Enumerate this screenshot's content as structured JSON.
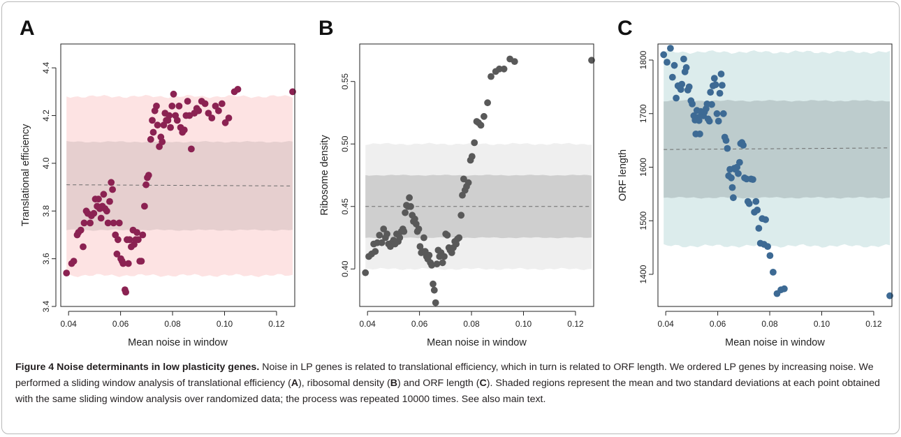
{
  "figure": {
    "caption_title": "Figure 4 Noise determinants in low plasticity genes.",
    "caption_parts": [
      " Noise in LP genes is related to translational efficiency, which in turn is related to ORF length. We ordered LP genes by increasing noise. We performed a sliding window analysis of translational efficiency (",
      "A",
      "), ribosomal density (",
      "B",
      ") and ORF length (",
      "C",
      "). Shaded regions represent the mean and two standard deviations at each point obtained with the same sliding window analysis over randomized data; the process was repeated 10000 times. See also main text."
    ]
  },
  "chart_data": [
    {
      "panel": "A",
      "type": "scatter",
      "xlabel": "Mean noise in window",
      "ylabel": "Translational efficiency",
      "xlim": [
        0.037,
        0.127
      ],
      "ylim": [
        3.4,
        4.5
      ],
      "xticks": [
        0.04,
        0.06,
        0.08,
        0.1,
        0.12
      ],
      "xtick_labels": [
        "0.04",
        "0.06",
        "0.08",
        "0.10",
        "0.12"
      ],
      "yticks": [
        3.4,
        3.6,
        3.8,
        4.0,
        4.2,
        4.4
      ],
      "ytick_labels": [
        "3.4",
        "3.6",
        "3.8",
        "4.0",
        "4.2",
        "4.4"
      ],
      "point_color": "#8b2252",
      "band_outer_color": "#fde3e3",
      "band_inner_color": "#e6cfcf",
      "mean_line": [
        3.91,
        3.905
      ],
      "band_inner": [
        3.72,
        4.09
      ],
      "band_outer": [
        3.53,
        4.28
      ],
      "points": [
        [
          0.0392,
          3.54
        ],
        [
          0.0412,
          3.58
        ],
        [
          0.042,
          3.59
        ],
        [
          0.0433,
          3.7
        ],
        [
          0.0438,
          3.71
        ],
        [
          0.0447,
          3.72
        ],
        [
          0.0456,
          3.65
        ],
        [
          0.046,
          3.75
        ],
        [
          0.0468,
          3.8
        ],
        [
          0.0474,
          3.79
        ],
        [
          0.0483,
          3.75
        ],
        [
          0.0488,
          3.78
        ],
        [
          0.0497,
          3.79
        ],
        [
          0.0503,
          3.85
        ],
        [
          0.051,
          3.82
        ],
        [
          0.0515,
          3.85
        ],
        [
          0.052,
          3.81
        ],
        [
          0.0525,
          3.77
        ],
        [
          0.053,
          3.82
        ],
        [
          0.0535,
          3.87
        ],
        [
          0.054,
          3.81
        ],
        [
          0.0547,
          3.8
        ],
        [
          0.0552,
          3.75
        ],
        [
          0.0558,
          3.84
        ],
        [
          0.0564,
          3.92
        ],
        [
          0.0569,
          3.89
        ],
        [
          0.0573,
          3.75
        ],
        [
          0.058,
          3.7
        ],
        [
          0.0586,
          3.62
        ],
        [
          0.059,
          3.68
        ],
        [
          0.0595,
          3.75
        ],
        [
          0.0601,
          3.6
        ],
        [
          0.0606,
          3.59
        ],
        [
          0.061,
          3.58
        ],
        [
          0.0617,
          3.47
        ],
        [
          0.062,
          3.46
        ],
        [
          0.0625,
          3.68
        ],
        [
          0.063,
          3.58
        ],
        [
          0.0635,
          3.68
        ],
        [
          0.0641,
          3.65
        ],
        [
          0.0648,
          3.72
        ],
        [
          0.0652,
          3.66
        ],
        [
          0.0658,
          3.68
        ],
        [
          0.0663,
          3.71
        ],
        [
          0.0668,
          3.68
        ],
        [
          0.0674,
          3.59
        ],
        [
          0.068,
          3.59
        ],
        [
          0.0685,
          3.7
        ],
        [
          0.0692,
          3.82
        ],
        [
          0.0698,
          3.91
        ],
        [
          0.0703,
          3.94
        ],
        [
          0.0708,
          3.95
        ],
        [
          0.0716,
          4.1
        ],
        [
          0.0722,
          4.18
        ],
        [
          0.0726,
          4.13
        ],
        [
          0.0732,
          4.22
        ],
        [
          0.0738,
          4.24
        ],
        [
          0.0742,
          4.16
        ],
        [
          0.0749,
          4.07
        ],
        [
          0.0755,
          4.11
        ],
        [
          0.076,
          4.09
        ],
        [
          0.0766,
          4.16
        ],
        [
          0.0771,
          4.21
        ],
        [
          0.0776,
          4.18
        ],
        [
          0.0782,
          4.18
        ],
        [
          0.0787,
          4.2
        ],
        [
          0.0792,
          4.15
        ],
        [
          0.0798,
          4.24
        ],
        [
          0.0804,
          4.29
        ],
        [
          0.0811,
          4.2
        ],
        [
          0.0818,
          4.18
        ],
        [
          0.0825,
          4.24
        ],
        [
          0.0831,
          4.15
        ],
        [
          0.0838,
          4.13
        ],
        [
          0.0845,
          4.14
        ],
        [
          0.0852,
          4.2
        ],
        [
          0.0858,
          4.26
        ],
        [
          0.0865,
          4.2
        ],
        [
          0.0872,
          4.06
        ],
        [
          0.0884,
          4.21
        ],
        [
          0.0893,
          4.23
        ],
        [
          0.09,
          4.22
        ],
        [
          0.0912,
          4.26
        ],
        [
          0.0925,
          4.25
        ],
        [
          0.0938,
          4.21
        ],
        [
          0.0951,
          4.19
        ],
        [
          0.0965,
          4.24
        ],
        [
          0.0977,
          4.22
        ],
        [
          0.099,
          4.25
        ],
        [
          0.1003,
          4.17
        ],
        [
          0.1016,
          4.19
        ],
        [
          0.1038,
          4.3
        ],
        [
          0.1051,
          4.31
        ],
        [
          0.1262,
          4.3
        ]
      ]
    },
    {
      "panel": "B",
      "type": "scatter",
      "xlabel": "Mean noise in window",
      "ylabel": "Ribosome density",
      "xlim": [
        0.037,
        0.127
      ],
      "ylim": [
        0.37,
        0.58
      ],
      "xticks": [
        0.04,
        0.06,
        0.08,
        0.1,
        0.12
      ],
      "xtick_labels": [
        "0.04",
        "0.06",
        "0.08",
        "0.10",
        "0.12"
      ],
      "yticks": [
        0.4,
        0.45,
        0.5,
        0.55
      ],
      "ytick_labels": [
        "0.40",
        "0.45",
        "0.50",
        "0.55"
      ],
      "point_color": "#595959",
      "band_outer_color": "#efefef",
      "band_inner_color": "#cfcfcf",
      "mean_line": [
        0.45,
        0.45
      ],
      "band_inner": [
        0.425,
        0.475
      ],
      "band_outer": [
        0.4,
        0.5
      ],
      "points": [
        [
          0.0392,
          0.397
        ],
        [
          0.0405,
          0.41
        ],
        [
          0.0416,
          0.412
        ],
        [
          0.0424,
          0.42
        ],
        [
          0.043,
          0.414
        ],
        [
          0.0438,
          0.421
        ],
        [
          0.0446,
          0.427
        ],
        [
          0.0455,
          0.421
        ],
        [
          0.0462,
          0.432
        ],
        [
          0.0469,
          0.425
        ],
        [
          0.0475,
          0.428
        ],
        [
          0.0481,
          0.42
        ],
        [
          0.0488,
          0.418
        ],
        [
          0.0494,
          0.421
        ],
        [
          0.05,
          0.423
        ],
        [
          0.0506,
          0.42
        ],
        [
          0.0512,
          0.428
        ],
        [
          0.0518,
          0.422
        ],
        [
          0.0524,
          0.425
        ],
        [
          0.053,
          0.43
        ],
        [
          0.0536,
          0.432
        ],
        [
          0.054,
          0.43
        ],
        [
          0.0545,
          0.445
        ],
        [
          0.055,
          0.451
        ],
        [
          0.0556,
          0.45
        ],
        [
          0.0561,
          0.457
        ],
        [
          0.0566,
          0.45
        ],
        [
          0.0572,
          0.443
        ],
        [
          0.0577,
          0.438
        ],
        [
          0.0582,
          0.44
        ],
        [
          0.0587,
          0.436
        ],
        [
          0.0592,
          0.43
        ],
        [
          0.0597,
          0.432
        ],
        [
          0.0602,
          0.418
        ],
        [
          0.0607,
          0.413
        ],
        [
          0.0612,
          0.414
        ],
        [
          0.0617,
          0.425
        ],
        [
          0.0622,
          0.414
        ],
        [
          0.0627,
          0.41
        ],
        [
          0.0632,
          0.408
        ],
        [
          0.0637,
          0.411
        ],
        [
          0.0642,
          0.405
        ],
        [
          0.0647,
          0.403
        ],
        [
          0.0652,
          0.388
        ],
        [
          0.0657,
          0.383
        ],
        [
          0.0662,
          0.373
        ],
        [
          0.0667,
          0.404
        ],
        [
          0.0672,
          0.415
        ],
        [
          0.0677,
          0.41
        ],
        [
          0.0683,
          0.413
        ],
        [
          0.0689,
          0.405
        ],
        [
          0.0695,
          0.41
        ],
        [
          0.0701,
          0.428
        ],
        [
          0.0707,
          0.427
        ],
        [
          0.0713,
          0.417
        ],
        [
          0.0718,
          0.415
        ],
        [
          0.0724,
          0.413
        ],
        [
          0.073,
          0.417
        ],
        [
          0.0736,
          0.422
        ],
        [
          0.0741,
          0.42
        ],
        [
          0.0746,
          0.424
        ],
        [
          0.0752,
          0.425
        ],
        [
          0.076,
          0.443
        ],
        [
          0.0765,
          0.459
        ],
        [
          0.077,
          0.472
        ],
        [
          0.0775,
          0.463
        ],
        [
          0.0781,
          0.466
        ],
        [
          0.0788,
          0.469
        ],
        [
          0.0796,
          0.487
        ],
        [
          0.0802,
          0.49
        ],
        [
          0.0811,
          0.501
        ],
        [
          0.082,
          0.518
        ],
        [
          0.0827,
          0.517
        ],
        [
          0.0836,
          0.515
        ],
        [
          0.0848,
          0.522
        ],
        [
          0.0862,
          0.533
        ],
        [
          0.0875,
          0.554
        ],
        [
          0.0893,
          0.558
        ],
        [
          0.0907,
          0.56
        ],
        [
          0.0925,
          0.56
        ],
        [
          0.0948,
          0.568
        ],
        [
          0.0966,
          0.566
        ],
        [
          0.1262,
          0.567
        ]
      ]
    },
    {
      "panel": "C",
      "type": "scatter",
      "xlabel": "Mean noise in window",
      "ylabel": "ORF length",
      "xlim": [
        0.037,
        0.127
      ],
      "ylim": [
        1340,
        1830
      ],
      "xticks": [
        0.04,
        0.06,
        0.08,
        0.1,
        0.12
      ],
      "xtick_labels": [
        "0.04",
        "0.06",
        "0.08",
        "0.10",
        "0.12"
      ],
      "yticks": [
        1400,
        1500,
        1600,
        1700,
        1800
      ],
      "ytick_labels": [
        "1400",
        "1500",
        "1600",
        "1700",
        "1800"
      ],
      "point_color": "#3d6a94",
      "band_outer_color": "#dcecec",
      "band_inner_color": "#bdcccd",
      "mean_line": [
        1633,
        1636
      ],
      "band_inner": [
        1543,
        1724
      ],
      "band_outer": [
        1453,
        1815
      ],
      "points": [
        [
          0.0392,
          1810
        ],
        [
          0.0405,
          1796
        ],
        [
          0.0418,
          1822
        ],
        [
          0.0426,
          1768
        ],
        [
          0.0433,
          1790
        ],
        [
          0.044,
          1729
        ],
        [
          0.0447,
          1752
        ],
        [
          0.0452,
          1750
        ],
        [
          0.0458,
          1745
        ],
        [
          0.0462,
          1755
        ],
        [
          0.0469,
          1802
        ],
        [
          0.0474,
          1778
        ],
        [
          0.0479,
          1786
        ],
        [
          0.0485,
          1744
        ],
        [
          0.049,
          1750
        ],
        [
          0.0497,
          1724
        ],
        [
          0.0502,
          1718
        ],
        [
          0.0508,
          1696
        ],
        [
          0.0513,
          1688
        ],
        [
          0.0516,
          1662
        ],
        [
          0.052,
          1706
        ],
        [
          0.0525,
          1693
        ],
        [
          0.0528,
          1687
        ],
        [
          0.0531,
          1662
        ],
        [
          0.0535,
          1704
        ],
        [
          0.054,
          1699
        ],
        [
          0.0545,
          1696
        ],
        [
          0.0549,
          1703
        ],
        [
          0.0555,
          1709
        ],
        [
          0.0559,
          1718
        ],
        [
          0.0563,
          1690
        ],
        [
          0.0568,
          1686
        ],
        [
          0.0572,
          1740
        ],
        [
          0.0577,
          1717
        ],
        [
          0.0582,
          1752
        ],
        [
          0.0587,
          1766
        ],
        [
          0.0592,
          1754
        ],
        [
          0.0597,
          1700
        ],
        [
          0.0603,
          1686
        ],
        [
          0.0608,
          1738
        ],
        [
          0.0613,
          1774
        ],
        [
          0.0617,
          1753
        ],
        [
          0.0622,
          1700
        ],
        [
          0.0627,
          1656
        ],
        [
          0.0632,
          1650
        ],
        [
          0.0637,
          1635
        ],
        [
          0.0642,
          1584
        ],
        [
          0.0647,
          1596
        ],
        [
          0.0652,
          1580
        ],
        [
          0.0656,
          1562
        ],
        [
          0.066,
          1543
        ],
        [
          0.0664,
          1598
        ],
        [
          0.0668,
          1596
        ],
        [
          0.0674,
          1600
        ],
        [
          0.0679,
          1588
        ],
        [
          0.0684,
          1609
        ],
        [
          0.0688,
          1644
        ],
        [
          0.0693,
          1646
        ],
        [
          0.0698,
          1641
        ],
        [
          0.0703,
          1580
        ],
        [
          0.0711,
          1578
        ],
        [
          0.0716,
          1536
        ],
        [
          0.0721,
          1532
        ],
        [
          0.0728,
          1578
        ],
        [
          0.0735,
          1577
        ],
        [
          0.0741,
          1516
        ],
        [
          0.0747,
          1536
        ],
        [
          0.0752,
          1520
        ],
        [
          0.0758,
          1486
        ],
        [
          0.0764,
          1458
        ],
        [
          0.0771,
          1504
        ],
        [
          0.0778,
          1456
        ],
        [
          0.0784,
          1502
        ],
        [
          0.0792,
          1452
        ],
        [
          0.0801,
          1435
        ],
        [
          0.0813,
          1404
        ],
        [
          0.0828,
          1364
        ],
        [
          0.0843,
          1371
        ],
        [
          0.0856,
          1373
        ],
        [
          0.1262,
          1360
        ]
      ]
    }
  ]
}
